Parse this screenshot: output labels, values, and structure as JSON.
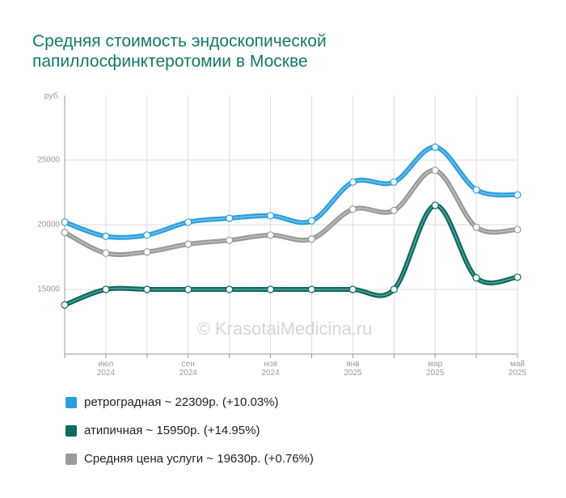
{
  "chart_data": {
    "type": "line",
    "title": [
      "Средняя стоимость эндоскопической",
      "папиллосфинктеротомии в Москве"
    ],
    "y_label": "руб.",
    "annotation": "© KrasotaiMedicina.ru",
    "categories": [
      null,
      "июл 2024",
      null,
      "сен 2024",
      null,
      "ноя 2024",
      null,
      "янв 2025",
      null,
      "мар 2025",
      null,
      "май 2025"
    ],
    "series": [
      {
        "name": "ретроградная ~ 22309р. (+10.03%)",
        "color": "#2b9fdc",
        "values": [
          20200,
          19100,
          19200,
          20200,
          20500,
          20700,
          20300,
          23300,
          23300,
          26000,
          22700,
          22309
        ]
      },
      {
        "name": "атипичная ~ 15950р. (+14.95%)",
        "color": "#0b6b60",
        "values": [
          13800,
          15000,
          15000,
          15000,
          15000,
          15000,
          15000,
          15000,
          15000,
          21500,
          15900,
          15950
        ]
      },
      {
        "name": "Средняя цена услуги ~ 19630р. (+0.76%)",
        "color": "#9a9a9a",
        "values": [
          19400,
          17800,
          17900,
          18500,
          18800,
          19200,
          18900,
          21200,
          21100,
          24200,
          19800,
          19630
        ]
      }
    ],
    "ylim": [
      10000,
      30000
    ],
    "yticks": [
      15000,
      20000,
      25000
    ],
    "grid": true
  }
}
